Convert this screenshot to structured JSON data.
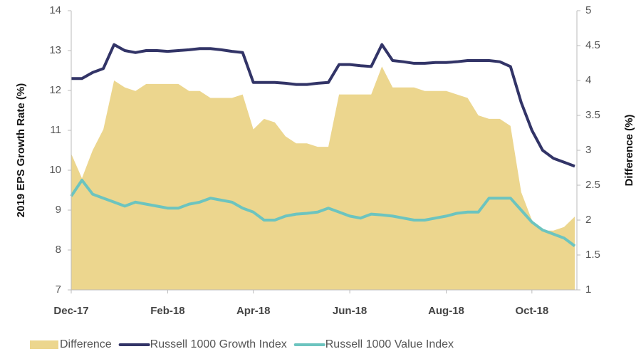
{
  "chart_data": {
    "type": "line",
    "categories": [
      "Dec-17",
      null,
      null,
      null,
      null,
      null,
      null,
      null,
      null,
      "Feb-18",
      null,
      null,
      null,
      null,
      null,
      null,
      null,
      "Apr-18",
      null,
      null,
      null,
      null,
      null,
      null,
      null,
      null,
      "Jun-18",
      null,
      null,
      null,
      null,
      null,
      null,
      null,
      null,
      "Aug-18",
      null,
      null,
      null,
      null,
      null,
      null,
      null,
      "Oct-18",
      null,
      null,
      null,
      null
    ],
    "ylabel": "2019 EPS Growth Rate (%)",
    "y2label": "Difference (%)",
    "ylim": [
      7,
      14
    ],
    "yticks": [
      7,
      8,
      9,
      10,
      11,
      12,
      13,
      14
    ],
    "y2lim": [
      1,
      5
    ],
    "y2ticks": [
      1,
      1.5,
      2,
      2.5,
      3,
      3.5,
      4,
      4.5,
      5
    ],
    "legend": "bottom",
    "series": [
      {
        "name": "Difference",
        "kind": "area",
        "axis": "y2",
        "color": "#ecd68e",
        "values": [
          2.95,
          2.6,
          3.0,
          3.3,
          4.0,
          3.9,
          3.85,
          3.95,
          3.95,
          3.95,
          3.95,
          3.85,
          3.85,
          3.75,
          3.75,
          3.75,
          3.8,
          3.3,
          3.45,
          3.4,
          3.2,
          3.1,
          3.1,
          3.05,
          3.05,
          3.8,
          3.8,
          3.8,
          3.8,
          4.2,
          3.9,
          3.9,
          3.9,
          3.85,
          3.85,
          3.85,
          3.8,
          3.75,
          3.5,
          3.45,
          3.45,
          3.35,
          2.4,
          2.0,
          1.85,
          1.85,
          1.9,
          2.05
        ]
      },
      {
        "name": "Russell 1000 Growth Index",
        "kind": "line",
        "color": "#323467",
        "values": [
          12.3,
          12.3,
          12.45,
          12.55,
          13.15,
          13.0,
          12.95,
          13.0,
          13.0,
          12.98,
          13.0,
          13.02,
          13.05,
          13.05,
          13.02,
          12.98,
          12.95,
          12.2,
          12.2,
          12.2,
          12.18,
          12.15,
          12.15,
          12.18,
          12.2,
          12.65,
          12.65,
          12.62,
          12.6,
          13.15,
          12.75,
          12.72,
          12.68,
          12.68,
          12.7,
          12.7,
          12.72,
          12.75,
          12.75,
          12.75,
          12.72,
          12.6,
          11.7,
          11.0,
          10.5,
          10.3,
          10.2,
          10.1
        ]
      },
      {
        "name": "Russell 1000 Value Index",
        "kind": "line",
        "color": "#6cc4bf",
        "values": [
          9.35,
          9.75,
          9.4,
          9.3,
          9.2,
          9.1,
          9.2,
          9.15,
          9.1,
          9.05,
          9.05,
          9.15,
          9.2,
          9.3,
          9.25,
          9.2,
          9.05,
          8.95,
          8.75,
          8.75,
          8.85,
          8.9,
          8.92,
          8.95,
          9.05,
          8.95,
          8.85,
          8.8,
          8.9,
          8.88,
          8.85,
          8.8,
          8.75,
          8.75,
          8.8,
          8.85,
          8.92,
          8.95,
          8.95,
          9.3,
          9.3,
          9.3,
          9.0,
          8.7,
          8.5,
          8.4,
          8.3,
          8.1
        ]
      }
    ]
  }
}
